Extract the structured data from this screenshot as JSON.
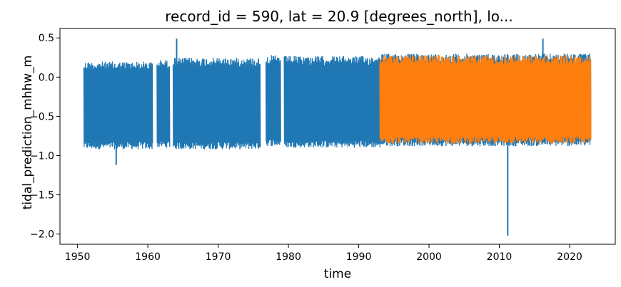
{
  "chart_data": {
    "type": "line",
    "title": "record_id = 590, lat = 20.9 [degrees_north], lo...",
    "xlabel": "time",
    "ylabel": "tidal_prediction_mhhw_m",
    "xlim": [
      1947.5,
      2026.5
    ],
    "ylim": [
      -2.13,
      0.62
    ],
    "xticks": [
      1950,
      1960,
      1970,
      1980,
      1990,
      2000,
      2010,
      2020
    ],
    "yticks": [
      0.5,
      0.0,
      -0.5,
      -1.0,
      -1.5,
      -2.0
    ],
    "ytick_labels": [
      "0.5",
      "0.0",
      "−0.5",
      "−1.0",
      "−1.5",
      "−2.0"
    ],
    "grid": false,
    "legend": "none",
    "series": [
      {
        "color": "#1f77b4",
        "segments": [
          {
            "x": [
              1950.9,
              1960.7
            ],
            "upper": 0.2,
            "lower": -0.92
          },
          {
            "x": [
              1961.3,
              1963.1
            ],
            "upper": 0.22,
            "lower": -0.9
          },
          {
            "x": [
              1963.6,
              1976.0
            ],
            "upper": 0.25,
            "lower": -0.92
          },
          {
            "x": [
              1976.8,
              1978.9
            ],
            "upper": 0.28,
            "lower": -0.88
          },
          {
            "x": [
              1979.4,
              1993.0
            ],
            "upper": 0.27,
            "lower": -0.9
          },
          {
            "x": [
              1993.0,
              2023.0
            ],
            "upper": 0.3,
            "lower": -0.88
          }
        ],
        "extremes": [
          {
            "x": 1955.5,
            "y": -1.12
          },
          {
            "x": 1964.1,
            "y": 0.49
          },
          {
            "x": 2016.2,
            "y": 0.49
          },
          {
            "x": 2011.2,
            "y": -2.02
          }
        ]
      },
      {
        "color": "#ff7f0e",
        "segments": [
          {
            "x": [
              1993.0,
              2023.0
            ],
            "upper": 0.28,
            "lower": -0.85
          }
        ]
      }
    ]
  }
}
